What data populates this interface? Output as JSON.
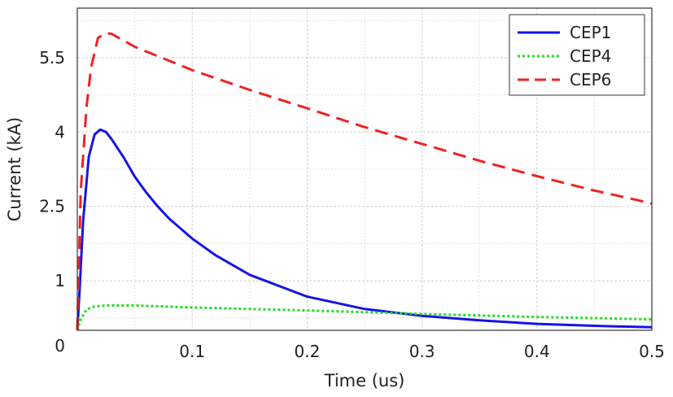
{
  "chart_data": {
    "type": "line",
    "xlabel": "Time (us)",
    "ylabel": "Current (kA)",
    "xlim": [
      0,
      0.5
    ],
    "ylim": [
      0,
      6.5
    ],
    "x_ticks": [
      "0.1",
      "0.2",
      "0.3",
      "0.4",
      "0.5"
    ],
    "y_ticks": [
      "0",
      "1",
      "2.5",
      "4",
      "5.5"
    ],
    "grid": true,
    "legend_position": "top-right",
    "series": [
      {
        "name": "CEP1",
        "color": "#1515e6",
        "style": "solid",
        "x": [
          0,
          0.002,
          0.005,
          0.01,
          0.015,
          0.02,
          0.025,
          0.03,
          0.04,
          0.05,
          0.06,
          0.07,
          0.08,
          0.1,
          0.12,
          0.15,
          0.2,
          0.25,
          0.3,
          0.35,
          0.4,
          0.45,
          0.5
        ],
        "y": [
          0,
          0.8,
          2.2,
          3.5,
          3.95,
          4.05,
          4.0,
          3.85,
          3.5,
          3.1,
          2.78,
          2.5,
          2.25,
          1.85,
          1.52,
          1.12,
          0.68,
          0.43,
          0.29,
          0.2,
          0.13,
          0.09,
          0.06
        ]
      },
      {
        "name": "CEP4",
        "color": "#22dd22",
        "style": "dotted",
        "x": [
          0,
          0.003,
          0.008,
          0.015,
          0.025,
          0.05,
          0.1,
          0.2,
          0.3,
          0.4,
          0.5
        ],
        "y": [
          0,
          0.22,
          0.42,
          0.48,
          0.5,
          0.5,
          0.46,
          0.4,
          0.33,
          0.27,
          0.22
        ]
      },
      {
        "name": "CEP6",
        "color": "#ee2222",
        "style": "dashed",
        "x": [
          0,
          0.003,
          0.008,
          0.012,
          0.018,
          0.025,
          0.03,
          0.05,
          0.1,
          0.15,
          0.2,
          0.25,
          0.3,
          0.35,
          0.4,
          0.45,
          0.5
        ],
        "y": [
          0,
          2.8,
          4.5,
          5.3,
          5.9,
          6.0,
          5.98,
          5.72,
          5.25,
          4.85,
          4.48,
          4.1,
          3.76,
          3.42,
          3.11,
          2.82,
          2.56
        ]
      }
    ]
  }
}
